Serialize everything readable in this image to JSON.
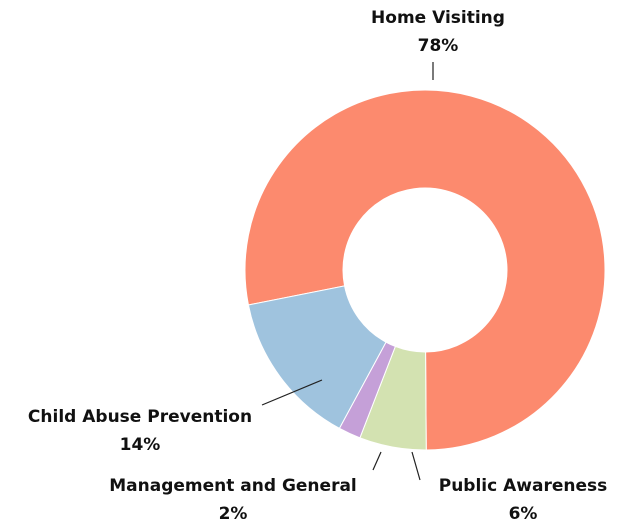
{
  "chart_data": {
    "type": "donut",
    "categories": [
      "Home Visiting",
      "Public Awareness",
      "Management and General",
      "Child Abuse Prevention"
    ],
    "values": [
      78,
      6,
      2,
      14
    ],
    "value_labels": [
      "78%",
      "6%",
      "2%",
      "14%"
    ],
    "colors": [
      "#fc8a6e",
      "#d3e2b1",
      "#c5a0d8",
      "#9fc3de"
    ]
  }
}
